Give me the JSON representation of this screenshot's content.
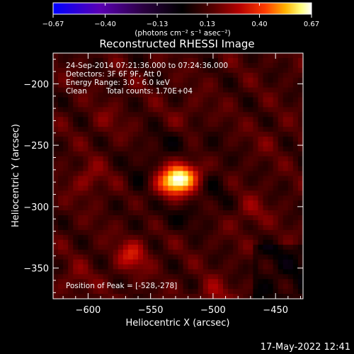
{
  "chart_data": {
    "type": "heatmap",
    "title": "Reconstructed RHESSI Image",
    "xlabel": "Heliocentric X (arcsec)",
    "ylabel": "Heliocentric Y (arcsec)",
    "xlim": [
      -628,
      -428
    ],
    "ylim": [
      -375,
      -175
    ],
    "xticks": [
      -600,
      -550,
      -500,
      -450
    ],
    "yticks": [
      -200,
      -250,
      -300,
      -350
    ],
    "xtick_labels": [
      "−600",
      "−550",
      "−500",
      "−450"
    ],
    "ytick_labels": [
      "−200",
      "−250",
      "−300",
      "−350"
    ],
    "colorbar": {
      "range": [
        -0.67,
        0.67
      ],
      "ticks": [
        -0.67,
        -0.4,
        -0.13,
        0.13,
        0.4,
        0.67
      ],
      "tick_labels": [
        "−0.67",
        "−0.40",
        "−0.13",
        "0.13",
        "0.40",
        "0.67"
      ],
      "unit_label": "(photons cm⁻² s⁻¹ asec⁻²)",
      "colors": [
        "#0000ff",
        "#5a00b4",
        "#2a0040",
        "#000000",
        "#550000",
        "#b40000",
        "#ff3c00",
        "#ffb400",
        "#ffff80",
        "#ffffff"
      ]
    },
    "annotations": [
      "24-Sep-2014 07:21:36.000 to 07:24:36.000",
      "Detectors: 3F 6F 9F, Att 0",
      "Energy Range: 3.0 - 6.0 keV",
      "Clean",
      "Total counts: 1.70E+04"
    ],
    "peak_label": "Position of Peak = [-528,-278]",
    "peak": {
      "x": -528,
      "y": -278,
      "value": 0.67
    },
    "secondary_sources": [
      {
        "x": -565,
        "y": -340,
        "value": 0.3
      },
      {
        "x": -600,
        "y": -278,
        "value": 0.22
      },
      {
        "x": -470,
        "y": -305,
        "value": 0.2
      },
      {
        "x": -500,
        "y": -372,
        "value": 0.22
      },
      {
        "x": -610,
        "y": -360,
        "value": 0.18
      },
      {
        "x": -585,
        "y": -230,
        "value": 0.16
      },
      {
        "x": -520,
        "y": -225,
        "value": 0.15
      },
      {
        "x": -455,
        "y": -245,
        "value": 0.14
      }
    ]
  },
  "footer": {
    "timestamp": "17-May-2022 12:41"
  }
}
